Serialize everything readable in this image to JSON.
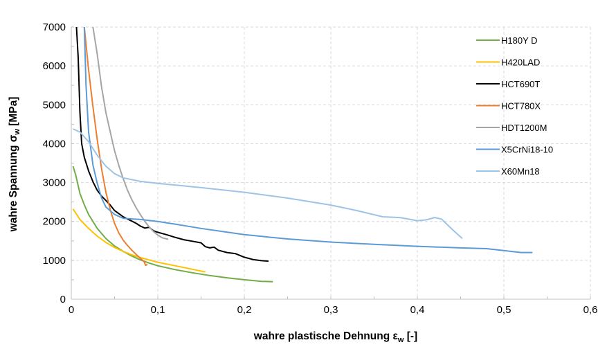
{
  "chart_data": {
    "type": "line",
    "title": "",
    "xlabel": "wahre plastische Dehnung ε",
    "xlabel_sub": "w",
    "xlabel_suffix": " [-]",
    "ylabel": "wahre Spannung σ",
    "ylabel_sub": "w",
    "ylabel_suffix": " [MPa]",
    "xlim": [
      0,
      0.6
    ],
    "ylim": [
      0,
      7000
    ],
    "x_ticks": [
      0,
      0.1,
      0.2,
      0.3,
      0.4,
      0.5,
      0.6
    ],
    "x_tick_labels": [
      "0",
      "0,1",
      "0,2",
      "0,3",
      "0,4",
      "0,5",
      "0,6"
    ],
    "y_ticks": [
      0,
      1000,
      2000,
      3000,
      4000,
      5000,
      6000,
      7000
    ],
    "y_tick_labels": [
      "0",
      "1000",
      "2000",
      "3000",
      "4000",
      "5000",
      "6000",
      "7000"
    ],
    "grid": true,
    "grid_style": "dashed",
    "legend_position": "top-right",
    "series": [
      {
        "name": "H180Y D",
        "color": "#70ad47",
        "points": [
          [
            0.002,
            3420
          ],
          [
            0.005,
            3200
          ],
          [
            0.01,
            2720
          ],
          [
            0.015,
            2430
          ],
          [
            0.02,
            2180
          ],
          [
            0.03,
            1820
          ],
          [
            0.04,
            1560
          ],
          [
            0.05,
            1370
          ],
          [
            0.06,
            1230
          ],
          [
            0.07,
            1110
          ],
          [
            0.08,
            1010
          ],
          [
            0.09,
            930
          ],
          [
            0.1,
            860
          ],
          [
            0.12,
            760
          ],
          [
            0.14,
            680
          ],
          [
            0.16,
            610
          ],
          [
            0.18,
            550
          ],
          [
            0.2,
            500
          ],
          [
            0.22,
            460
          ],
          [
            0.233,
            450
          ]
        ]
      },
      {
        "name": "H420LAD",
        "color": "#ffc000",
        "points": [
          [
            0.002,
            2320
          ],
          [
            0.005,
            2220
          ],
          [
            0.01,
            2050
          ],
          [
            0.02,
            1820
          ],
          [
            0.03,
            1620
          ],
          [
            0.04,
            1460
          ],
          [
            0.05,
            1330
          ],
          [
            0.06,
            1230
          ],
          [
            0.07,
            1140
          ],
          [
            0.08,
            1070
          ],
          [
            0.09,
            1010
          ],
          [
            0.1,
            950
          ],
          [
            0.12,
            860
          ],
          [
            0.14,
            770
          ],
          [
            0.155,
            700
          ]
        ]
      },
      {
        "name": "HCT690T",
        "color": "#000000",
        "points": [
          [
            0.006,
            7000
          ],
          [
            0.008,
            6200
          ],
          [
            0.01,
            4800
          ],
          [
            0.012,
            4000
          ],
          [
            0.015,
            3650
          ],
          [
            0.02,
            3300
          ],
          [
            0.025,
            3020
          ],
          [
            0.03,
            2800
          ],
          [
            0.035,
            2650
          ],
          [
            0.04,
            2540
          ],
          [
            0.045,
            2420
          ],
          [
            0.05,
            2280
          ],
          [
            0.055,
            2200
          ],
          [
            0.06,
            2120
          ],
          [
            0.065,
            2060
          ],
          [
            0.07,
            2010
          ],
          [
            0.075,
            1950
          ],
          [
            0.08,
            1880
          ],
          [
            0.085,
            1830
          ],
          [
            0.09,
            1850
          ],
          [
            0.095,
            1760
          ],
          [
            0.1,
            1720
          ],
          [
            0.11,
            1660
          ],
          [
            0.12,
            1590
          ],
          [
            0.13,
            1530
          ],
          [
            0.14,
            1490
          ],
          [
            0.15,
            1450
          ],
          [
            0.155,
            1350
          ],
          [
            0.16,
            1320
          ],
          [
            0.165,
            1340
          ],
          [
            0.17,
            1260
          ],
          [
            0.18,
            1200
          ],
          [
            0.19,
            1170
          ],
          [
            0.2,
            1080
          ],
          [
            0.21,
            1020
          ],
          [
            0.22,
            990
          ],
          [
            0.228,
            980
          ]
        ]
      },
      {
        "name": "HCT780X",
        "color": "#ed7d31",
        "points": [
          [
            0.015,
            7000
          ],
          [
            0.02,
            5900
          ],
          [
            0.025,
            4950
          ],
          [
            0.03,
            4100
          ],
          [
            0.035,
            3350
          ],
          [
            0.04,
            2750
          ],
          [
            0.045,
            2300
          ],
          [
            0.05,
            1950
          ],
          [
            0.055,
            1700
          ],
          [
            0.06,
            1520
          ],
          [
            0.065,
            1380
          ],
          [
            0.07,
            1260
          ],
          [
            0.075,
            1150
          ],
          [
            0.08,
            1050
          ],
          [
            0.084,
            970
          ],
          [
            0.086,
            870
          ],
          [
            0.088,
            900
          ]
        ]
      },
      {
        "name": "HDT1200M",
        "color": "#a5a5a5",
        "points": [
          [
            0.025,
            7000
          ],
          [
            0.03,
            6300
          ],
          [
            0.035,
            5450
          ],
          [
            0.04,
            4800
          ],
          [
            0.045,
            4300
          ],
          [
            0.05,
            3820
          ],
          [
            0.055,
            3430
          ],
          [
            0.06,
            3100
          ],
          [
            0.065,
            2800
          ],
          [
            0.07,
            2560
          ],
          [
            0.075,
            2350
          ],
          [
            0.08,
            2170
          ],
          [
            0.085,
            2000
          ],
          [
            0.09,
            1860
          ],
          [
            0.095,
            1740
          ],
          [
            0.1,
            1650
          ],
          [
            0.105,
            1580
          ],
          [
            0.112,
            1540
          ]
        ]
      },
      {
        "name": "X5CrNi18-10",
        "color": "#5b9bd5",
        "points": [
          [
            0.015,
            7000
          ],
          [
            0.017,
            5500
          ],
          [
            0.02,
            4300
          ],
          [
            0.025,
            3450
          ],
          [
            0.03,
            2980
          ],
          [
            0.035,
            2600
          ],
          [
            0.04,
            2370
          ],
          [
            0.05,
            2180
          ],
          [
            0.06,
            2080
          ],
          [
            0.08,
            2050
          ],
          [
            0.1,
            2000
          ],
          [
            0.12,
            1930
          ],
          [
            0.15,
            1820
          ],
          [
            0.2,
            1660
          ],
          [
            0.25,
            1550
          ],
          [
            0.3,
            1470
          ],
          [
            0.35,
            1410
          ],
          [
            0.4,
            1360
          ],
          [
            0.45,
            1320
          ],
          [
            0.48,
            1300
          ],
          [
            0.5,
            1250
          ],
          [
            0.52,
            1200
          ],
          [
            0.533,
            1200
          ]
        ]
      },
      {
        "name": "X60Mn18",
        "color": "#9dc3e6",
        "points": [
          [
            0.002,
            4380
          ],
          [
            0.01,
            4300
          ],
          [
            0.02,
            4050
          ],
          [
            0.03,
            3700
          ],
          [
            0.04,
            3420
          ],
          [
            0.05,
            3230
          ],
          [
            0.06,
            3120
          ],
          [
            0.08,
            3030
          ],
          [
            0.1,
            2980
          ],
          [
            0.15,
            2870
          ],
          [
            0.2,
            2750
          ],
          [
            0.25,
            2600
          ],
          [
            0.3,
            2420
          ],
          [
            0.33,
            2280
          ],
          [
            0.36,
            2120
          ],
          [
            0.38,
            2100
          ],
          [
            0.4,
            2020
          ],
          [
            0.41,
            2040
          ],
          [
            0.42,
            2100
          ],
          [
            0.428,
            2060
          ],
          [
            0.44,
            1800
          ],
          [
            0.452,
            1560
          ]
        ]
      }
    ]
  }
}
